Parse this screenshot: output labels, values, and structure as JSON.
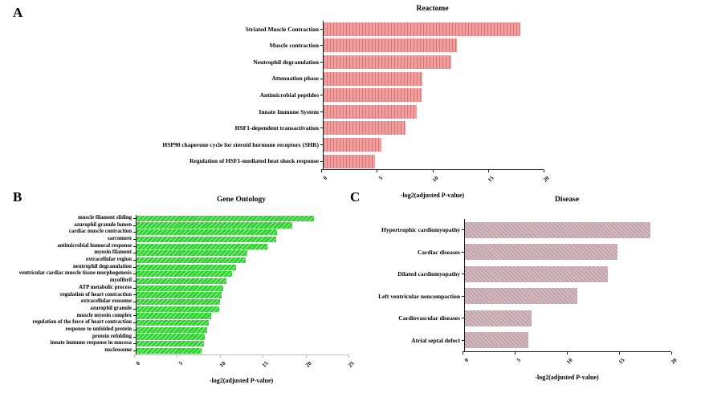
{
  "figure": {
    "background": "#ffffff"
  },
  "panels": [
    {
      "letter": "A"
    },
    {
      "letter": "B"
    },
    {
      "letter": "C"
    }
  ],
  "chart_data": [
    {
      "type": "bar",
      "orientation": "horizontal",
      "title": "Reactome",
      "xlabel": "-log2(adjusted P-value)",
      "xlim": [
        0,
        20
      ],
      "xticks": [
        0,
        5,
        10,
        15,
        20
      ],
      "bar_color": "#f59e9e",
      "hatch": "vertical",
      "grid": false,
      "legend": "none",
      "categories": [
        "Striated Muscle Contraction",
        "Muscle contraction",
        "Neutrophil degranulation",
        "Attenuation phase",
        "Antimicrobial peptides",
        "Innate Immune System",
        "HSF1-dependent transactivation",
        "HSP90 chaperone cycle for steroid hormone receptors (SHR)",
        "Regulation of HSF1-mediated heat shock response"
      ],
      "values": [
        17.7,
        12.0,
        11.5,
        8.9,
        8.8,
        8.4,
        7.4,
        5.2,
        4.6
      ]
    },
    {
      "type": "bar",
      "orientation": "horizontal",
      "title": "Gene Ontology",
      "xlabel": "-log2(adjusted P-value)",
      "xlim": [
        0,
        25
      ],
      "xticks": [
        0,
        5,
        10,
        15,
        20,
        25
      ],
      "bar_color": "#2fd32f",
      "hatch": "forward-diagonal",
      "grid": false,
      "legend": "none",
      "categories": [
        "muscle filament sliding",
        "azurophil granule lumen",
        "cardiac muscle contraction",
        "sarcomere",
        "antimicrobial humoral response",
        "myosin filament",
        "extracellular region",
        "neutrophil degranulation",
        "ventricular cardiac muscle tissue morphogenesis",
        "myofibril",
        "ATP metabolic process",
        "regulation of heart contraction",
        "extracellular exosome",
        "azurophil granule",
        "muscle myosin complex",
        "regulation of the force of heart contraction",
        "response to unfolded protein",
        "protein refolding",
        "innate immune response in mucosa",
        "nucleosome"
      ],
      "values": [
        20.7,
        18.2,
        16.4,
        16.3,
        15.3,
        12.9,
        12.7,
        11.6,
        11.1,
        10.5,
        10.1,
        9.9,
        9.7,
        9.6,
        8.7,
        8.4,
        8.2,
        8.0,
        7.9,
        7.6
      ]
    },
    {
      "type": "bar",
      "orientation": "horizontal",
      "title": "Disease",
      "xlabel": "-log2(adjusted P-value)",
      "xlim": [
        0,
        20
      ],
      "xticks": [
        0,
        5,
        10,
        15,
        20
      ],
      "bar_color": "#d9b6b8",
      "hatch": "backward-diagonal",
      "grid": false,
      "legend": "none",
      "categories": [
        "Hypertrophic cardiomyopathy",
        "Cardiac diseases",
        "Dilated cardiomyopathy",
        "Left ventricular noncompaction",
        "Cardiovascular diseases",
        "Atrial septal defect"
      ],
      "values": [
        17.8,
        14.6,
        13.7,
        10.8,
        6.4,
        6.1
      ]
    }
  ]
}
